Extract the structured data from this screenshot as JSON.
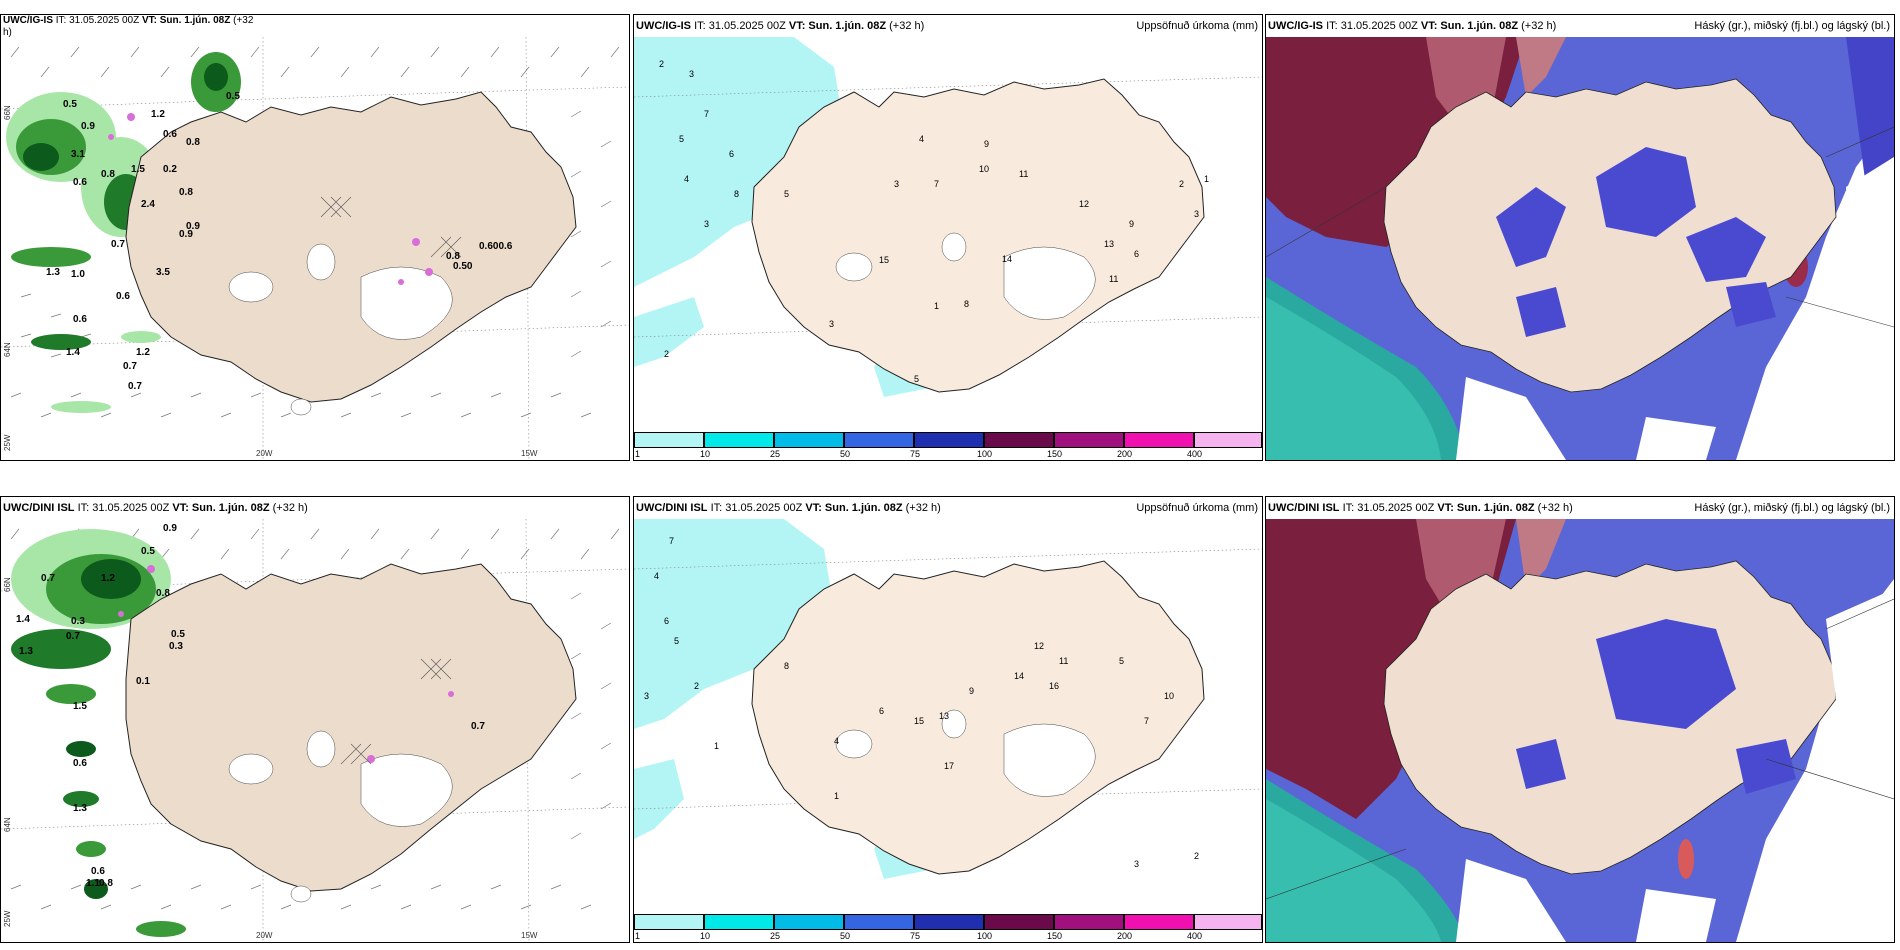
{
  "rows": [
    {
      "wind_header": {
        "model": "UWC/IG-IS",
        "it": "IT: 31.05.2025 00Z",
        "vt": "VT: Sun. 1.jún. 08Z",
        "lead": "(+32",
        "lead2": "h)"
      },
      "header": {
        "model": "UWC/IG-IS",
        "it": "IT: 31.05.2025 00Z",
        "vt": "VT: Sun. 1.jún. 08Z",
        "lead": "(+32 h)"
      },
      "precip_title": "Uppsöfnuð úrkoma (mm)",
      "cloud_title": "Háský (gr.), miðský (fj.bl.) og lágský (bl.)",
      "wind_values": [
        "0.5",
        "0.5",
        "1.2",
        "0.9",
        "0.6",
        "0.8",
        "3.1",
        "0.8",
        "1.5",
        "0.2",
        "0.8",
        "0.9",
        "0.6",
        "2.4",
        "0.9",
        "0.7",
        "3.5",
        "0.6",
        "1.3",
        "1.0",
        "0.6",
        "1.4",
        "1.2",
        "0.7",
        "0.7",
        "0.8",
        "0.50",
        "0.600.6"
      ],
      "precip_values": [
        "2",
        "3",
        "7",
        "5",
        "6",
        "4",
        "3",
        "5",
        "8",
        "9",
        "11",
        "12",
        "10",
        "7",
        "3",
        "4",
        "13",
        "6",
        "2",
        "1",
        "3",
        "9",
        "14",
        "15",
        "8",
        "1",
        "3",
        "2",
        "11",
        "5"
      ]
    },
    {
      "wind_header": {
        "model": "UWC/DINI ISL",
        "it": "IT: 31.05.2025 00Z",
        "vt": "VT: Sun. 1.jún. 08Z",
        "lead": "(+32 h)",
        "lead2": ""
      },
      "header": {
        "model": "UWC/DINI ISL",
        "it": "IT: 31.05.2025 00Z",
        "vt": "VT: Sun. 1.jún. 08Z",
        "lead": "(+32 h)"
      },
      "precip_title": "Uppsöfnuð úrkoma (mm)",
      "cloud_title": "Háský (gr.), miðský (fj.bl.) og lágský (bl.)",
      "wind_values": [
        "0.9",
        "0.7",
        "1.2",
        "0.5",
        "0.8",
        "0.3",
        "0.7",
        "1.3",
        "0.5",
        "0.3",
        "1.4",
        "0.1",
        "1.5",
        "0.6",
        "1.3",
        "0.6",
        "0.7",
        "1.1",
        "0.8"
      ],
      "precip_values": [
        "7",
        "4",
        "6",
        "5",
        "3",
        "2",
        "1",
        "8",
        "12",
        "13",
        "14",
        "16",
        "11",
        "9",
        "6",
        "17",
        "5",
        "7",
        "10",
        "4",
        "2",
        "3",
        "1",
        "15"
      ]
    }
  ],
  "grid_labels": {
    "lon_w20": "20W",
    "lon_w15": "15W",
    "lat_n66": "66N",
    "lat_n64": "64N",
    "lon_w25": "25W"
  },
  "colorbar": {
    "ticks": [
      "1",
      "10",
      "25",
      "50",
      "75",
      "100",
      "150",
      "200",
      "400"
    ],
    "colors": [
      "#b3f5f5",
      "#00e8e8",
      "#00bce6",
      "#3366e0",
      "#1f2fb0",
      "#6a0a4a",
      "#a0107f",
      "#f010b0",
      "#f5b3f0"
    ]
  },
  "colors": {
    "land": "#f8eadc",
    "land_wind": "#ecdccc",
    "precip_light": "#b3f5f5",
    "cloud_high": "#7a1f3d",
    "cloud_mid": "#4444c8",
    "cloud_low": "#5b74e0",
    "sea_teal": "#2aa9a0"
  }
}
